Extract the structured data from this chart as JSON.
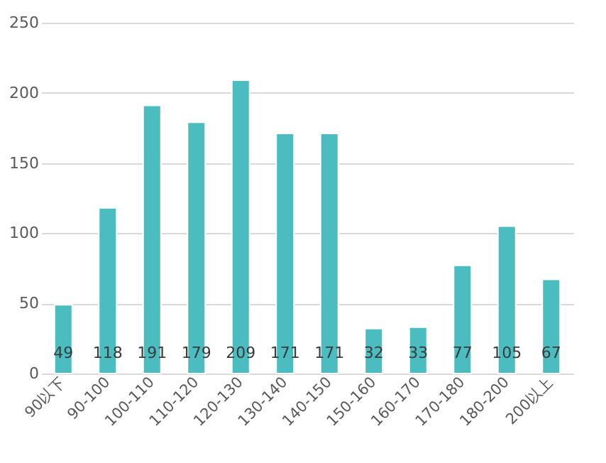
{
  "chart_data": {
    "type": "bar",
    "categories": [
      "90以下",
      "90-100",
      "100-110",
      "110-120",
      "120-130",
      "130-140",
      "140-150",
      "150-160",
      "160-170",
      "170-180",
      "180-200",
      "200以上"
    ],
    "values": [
      49,
      118,
      191,
      179,
      209,
      171,
      171,
      32,
      33,
      77,
      105,
      67
    ],
    "color": "#4bbdc0",
    "ylim": [
      0,
      250
    ],
    "yticks": [
      0,
      50,
      100,
      150,
      200,
      250
    ],
    "grid": "y",
    "data_labels": true
  }
}
